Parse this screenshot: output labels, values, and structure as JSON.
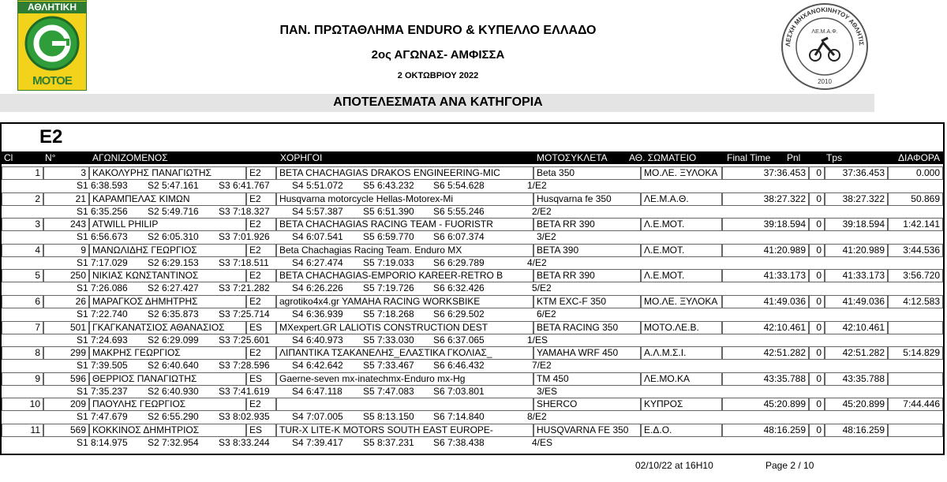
{
  "header": {
    "left_logo": {
      "top": "ΑΘΛΗΤΙΚΗ",
      "bottom": "ΜΟΤΟΕ"
    },
    "right_logo": {
      "ring": "ΛΕΣΧΗ ΜΗΧΑΝΟΚΙΝΗΤΟΥ ΑΘΛΗΤΙΣΜΟΥ ΦΩΚΙΔΑΣ",
      "center": "ΛΕ.Μ.Α.Φ.",
      "year": "2010"
    },
    "title": "ΠΑΝ. ΠΡΩΤΑΘΛΗΜΑ ENDURO & ΚΥΠΕΛΛΟ ΕΛΛΑΔΟ",
    "subtitle": "2ος ΑΓΩΝΑΣ- ΑΜΦΙΣΣΑ",
    "date": "2 ΟΚΤΩΒΡΙΟΥ 2022",
    "section": "ΑΠΟΤΕΛΕΣΜΑΤΑ ΑΝΑ ΚΑΤΗΓΟΡΙΑ"
  },
  "table": {
    "category": "E2",
    "columns": [
      "Cl",
      "N°",
      "ΑΓΩΝΙΖΟΜΕΝΟΣ",
      "ΧΟΡΗΓΟΙ",
      "ΜΟΤΟΣΥΚΛΕΤΑ",
      "ΑΘ. ΣΩΜΑΤΕΙΟ",
      "Final Time",
      "Pnl",
      "Tps",
      "ΔΙΑΦΟΡΑ"
    ],
    "rows": [
      {
        "cl": "1",
        "number": "3",
        "rider": "ΚΑΚΟΛΥΡΗΣ ΠΑΝΑΓΙΩΤΗΣ",
        "class": "E2",
        "sponsor": "BETA CHACHAGIAS DRAKOS ENGINEERING-MIC",
        "bike": "Beta 350",
        "club": "ΜΟ.ΛΕ. ΞΥΛΟΚΑ",
        "final_time": "37:36.453",
        "penalty": "0",
        "tps": "37:36.453",
        "diff": "0.000",
        "splits": [
          "S1 6:38.593",
          "S2 5:47.161",
          "S3 6:41.767",
          "S4 5:51.072",
          "S5 6:43.232",
          "S6 5:54.628"
        ],
        "position": "1/E2"
      },
      {
        "cl": "2",
        "number": "21",
        "rider": "ΚΑΡΑΜΠΕΛΑΣ ΚΙΜΩΝ",
        "class": "E2",
        "sponsor": "Husqvarna motorcycle Hellas-Motorex-Mi",
        "bike": "Husqvarna fe 350",
        "club": "ΛΕ.Μ.Α.Θ.",
        "final_time": "38:27.322",
        "penalty": "0",
        "tps": "38:27.322",
        "diff": "50.869",
        "splits": [
          "S1 6:35.256",
          "S2 5:49.716",
          "S3 7:18.327",
          "S4 5:57.387",
          "S5 6:51.390",
          "S6 5:55.246"
        ],
        "position": "2/E2"
      },
      {
        "cl": "3",
        "number": "243",
        "rider": "ATWILL PHILIP",
        "class": "E2",
        "sponsor": "BETA CHACHAGIAS RACING TEAM - FUORISTR",
        "bike": "BETA RR 390",
        "club": "Λ.Ε.ΜΟΤ.",
        "final_time": "39:18.594",
        "penalty": "0",
        "tps": "39:18.594",
        "diff": "1:42.141",
        "splits": [
          "S1 6:56.673",
          "S2 6:05.310",
          "S3 7:01.926",
          "S4 6:07.541",
          "S5 6:59.770",
          "S6 6:07.374"
        ],
        "position": "3/E2"
      },
      {
        "cl": "4",
        "number": "9",
        "rider": "ΜΑΝΩΛΙΔΗΣ ΓΕΩΡΓΙΟΣ",
        "class": "E2",
        "sponsor": "Beta Chachagias Racing Team. Enduro MX",
        "bike": "BETA 390",
        "club": "Λ.Ε.ΜΟΤ.",
        "final_time": "41:20.989",
        "penalty": "0",
        "tps": "41:20.989",
        "diff": "3:44.536",
        "splits": [
          "S1 7:17.029",
          "S2 6:29.153",
          "S3 7:18.511",
          "S4 6:27.474",
          "S5 7:19.033",
          "S6 6:29.789"
        ],
        "position": "4/E2"
      },
      {
        "cl": "5",
        "number": "250",
        "rider": "ΝΙΚΙΑΣ ΚΩΝΣΤΑΝΤΙΝΟΣ",
        "class": "E2",
        "sponsor": "BETA CHACHAGIAS-EMPORIO KAREER-RETRO B",
        "bike": "BETA RR 390",
        "club": "Λ.Ε.ΜΟΤ.",
        "final_time": "41:33.173",
        "penalty": "0",
        "tps": "41:33.173",
        "diff": "3:56.720",
        "splits": [
          "S1 7:26.086",
          "S2 6:27.427",
          "S3 7:21.282",
          "S4 6:26.226",
          "S5 7:19.726",
          "S6 6:32.426"
        ],
        "position": "5/E2"
      },
      {
        "cl": "6",
        "number": "26",
        "rider": "ΜΑΡΑΓΚΟΣ ΔΗΜΗΤΡΗΣ",
        "class": "E2",
        "sponsor": "agrotiko4x4.gr YAMAHA RACING WORKSBIKE",
        "bike": "KTM EXC-F 350",
        "club": "ΜΟ.ΛΕ. ΞΥΛΟΚΑ",
        "final_time": "41:49.036",
        "penalty": "0",
        "tps": "41:49.036",
        "diff": "4:12.583",
        "splits": [
          "S1 7:22.740",
          "S2 6:35.873",
          "S3 7:25.714",
          "S4 6:36.939",
          "S5 7:18.268",
          "S6 6:29.502"
        ],
        "position": "6/E2"
      },
      {
        "cl": "7",
        "number": "501",
        "rider": "ΓΚΑΓΚΑΝΑΤΣΙΟΣ ΑΘΑΝΑΣΙΟΣ",
        "class": "ES",
        "sponsor": "MXexpert.GR LALIOTIS CONSTRUCTION DEST",
        "bike": "BETA RACING 350",
        "club": "ΜΟΤΟ.ΛΕ.Β.",
        "final_time": "42:10.461",
        "penalty": "0",
        "tps": "42:10.461",
        "splits": [
          "S1 7:24.693",
          "S2 6:29.099",
          "S3 7:25.601",
          "S4 6:40.973",
          "S5 7:33.030",
          "S6 6:37.065"
        ],
        "position": "1/ES"
      },
      {
        "cl": "8",
        "number": "299",
        "rider": "ΜΑΚΡΗΣ ΓΕΩΡΓΙΟΣ",
        "class": "E2",
        "sponsor": "ΛΙΠΑΝΤΙΚΑ ΤΣΑΚΑΝΕΛΗΣ_ΕΛΑΣΤΙΚΑ ΓΚΟΛΙΑΣ_",
        "bike": "YAMAHA WRF 450",
        "club": "Α.Λ.Μ.Σ.Ι.",
        "final_time": "42:51.282",
        "penalty": "0",
        "tps": "42:51.282",
        "diff": "5:14.829",
        "splits": [
          "S1 7:39.505",
          "S2 6:40.640",
          "S3 7:28.596",
          "S4 6:42.642",
          "S5 7:33.467",
          "S6 6:46.432"
        ],
        "position": "7/E2"
      },
      {
        "cl": "9",
        "number": "596",
        "rider": "ΘΕΡΡΙΟΣ ΠΑΝΑΓΙΩΤΗΣ",
        "class": "ES",
        "sponsor": "Gaerne-seven mx-inatechmx-Enduro mx-Hg",
        "bike": "TM 450",
        "club": "ΛΕ.ΜΟ.ΚΑ",
        "final_time": "43:35.788",
        "penalty": "0",
        "tps": "43:35.788",
        "splits": [
          "S1 7:35.237",
          "S2 6:40.930",
          "S3 7:41.619",
          "S4 6:47.118",
          "S5 7:47.083",
          "S6 7:03.801"
        ],
        "position": "3/ES"
      },
      {
        "cl": "10",
        "number": "209",
        "rider": "ΠΑΟΥΛΗΣ ΓΕΩΡΓΙΟΣ",
        "class": "E2",
        "bike": "SHERCO",
        "club": "ΚΥΠΡΟΣ",
        "final_time": "45:20.899",
        "penalty": "0",
        "tps": "45:20.899",
        "diff": "7:44.446",
        "splits": [
          "S1 7:47.679",
          "S2 6:55.290",
          "S3 8:02.935",
          "S4 7:07.005",
          "S5 8:13.150",
          "S6 7:14.840"
        ],
        "position": "8/E2"
      },
      {
        "cl": "11",
        "number": "569",
        "rider": "ΚΟΚΚΙΝΟΣ ΔΗΜΗΤΡΙΟΣ",
        "class": "ES",
        "sponsor": "TUR-X LITE-K MOTORS SOUTH EAST EUROPE-",
        "bike": "HUSQVARNA FE 350",
        "club": "Ε.Δ.Ο.",
        "final_time": "48:16.259",
        "penalty": "0",
        "tps": "48:16.259",
        "splits": [
          "S1 8:14.975",
          "S2 7:32.954",
          "S3 8:33.244",
          "S4 7:39.417",
          "S5 8:37.231",
          "S6 7:38.438"
        ],
        "position": "4/ES"
      }
    ]
  },
  "footer": {
    "timestamp": "02/10/22 at 16H10",
    "page": "Page 2 / 10"
  }
}
